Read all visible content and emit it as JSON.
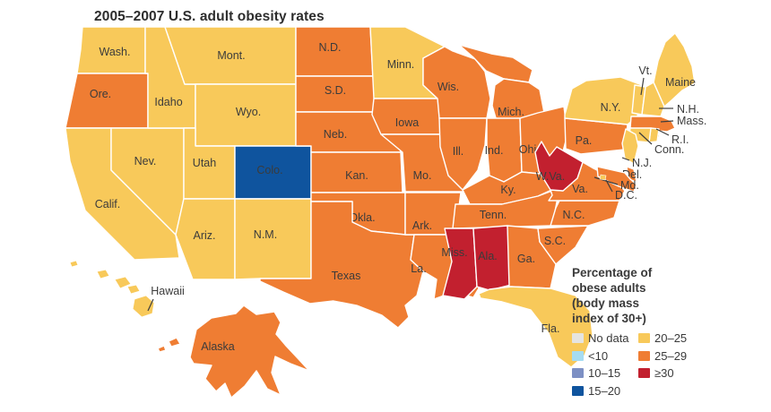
{
  "title": "2005–2007 U.S. adult obesity rates",
  "colors": {
    "no-data": "#E5E4E1",
    "lt10": "#A6DCF2",
    "b10-15": "#7D90C4",
    "b15-20": "#0F549E",
    "b20-25": "#F8C95A",
    "b25-29": "#EF7D33",
    "b30": "#C2202F"
  },
  "map": {
    "border_color": "#ffffff",
    "label_color": "#3b3b3b",
    "label_color_light": "#ffffff",
    "leader_color": "#3d3d3d"
  },
  "legend": {
    "title_lines": [
      "Percentage of",
      "obese adults",
      "(body mass",
      "index of 30+)"
    ],
    "columns": [
      [
        {
          "label": "No data",
          "category": "no-data"
        },
        {
          "label": "<10",
          "category": "lt10"
        },
        {
          "label": "10–15",
          "category": "b10-15"
        },
        {
          "label": "15–20",
          "category": "b15-20"
        }
      ],
      [
        {
          "label": "20–25",
          "category": "b20-25"
        },
        {
          "label": "25–29",
          "category": "b25-29"
        },
        {
          "label": "≥30",
          "category": "b30"
        }
      ]
    ]
  },
  "states": [
    {
      "id": "WA",
      "label": "Wash.",
      "category": "b20-25"
    },
    {
      "id": "OR",
      "label": "Ore.",
      "category": "b25-29"
    },
    {
      "id": "CA",
      "label": "Calif.",
      "category": "b20-25"
    },
    {
      "id": "NV",
      "label": "Nev.",
      "category": "b20-25"
    },
    {
      "id": "ID",
      "label": "Idaho",
      "category": "b20-25"
    },
    {
      "id": "MT",
      "label": "Mont.",
      "category": "b20-25"
    },
    {
      "id": "WY",
      "label": "Wyo.",
      "category": "b20-25"
    },
    {
      "id": "UT",
      "label": "Utah",
      "category": "b20-25"
    },
    {
      "id": "CO",
      "label": "Colo.",
      "category": "b15-20",
      "label_white": true
    },
    {
      "id": "AZ",
      "label": "Ariz.",
      "category": "b20-25"
    },
    {
      "id": "NM",
      "label": "N.M.",
      "category": "b20-25"
    },
    {
      "id": "ND",
      "label": "N.D.",
      "category": "b25-29"
    },
    {
      "id": "SD",
      "label": "S.D.",
      "category": "b25-29"
    },
    {
      "id": "NE",
      "label": "Neb.",
      "category": "b25-29"
    },
    {
      "id": "KS",
      "label": "Kan.",
      "category": "b25-29"
    },
    {
      "id": "OK",
      "label": "Okla.",
      "category": "b25-29"
    },
    {
      "id": "TX",
      "label": "Texas",
      "category": "b25-29"
    },
    {
      "id": "MN",
      "label": "Minn.",
      "category": "b20-25"
    },
    {
      "id": "IA",
      "label": "Iowa",
      "category": "b25-29"
    },
    {
      "id": "MO",
      "label": "Mo.",
      "category": "b25-29"
    },
    {
      "id": "AR",
      "label": "Ark.",
      "category": "b25-29"
    },
    {
      "id": "LA",
      "label": "La.",
      "category": "b25-29"
    },
    {
      "id": "WI",
      "label": "Wis.",
      "category": "b25-29"
    },
    {
      "id": "IL",
      "label": "Ill.",
      "category": "b25-29"
    },
    {
      "id": "MI",
      "label": "Mich.",
      "category": "b25-29"
    },
    {
      "id": "IN",
      "label": "Ind.",
      "category": "b25-29"
    },
    {
      "id": "OH",
      "label": "Ohio",
      "category": "b25-29"
    },
    {
      "id": "KY",
      "label": "Ky.",
      "category": "b25-29"
    },
    {
      "id": "TN",
      "label": "Tenn.",
      "category": "b25-29"
    },
    {
      "id": "MS",
      "label": "Miss.",
      "category": "b30",
      "label_white": true
    },
    {
      "id": "AL",
      "label": "Ala.",
      "category": "b30",
      "label_white": true
    },
    {
      "id": "GA",
      "label": "Ga.",
      "category": "b25-29"
    },
    {
      "id": "FL",
      "label": "Fla.",
      "category": "b20-25"
    },
    {
      "id": "SC",
      "label": "S.C.",
      "category": "b25-29"
    },
    {
      "id": "NC",
      "label": "N.C.",
      "category": "b25-29"
    },
    {
      "id": "VA",
      "label": "Va.",
      "category": "b25-29"
    },
    {
      "id": "WV",
      "label": "W.Va.",
      "category": "b30",
      "label_white": true
    },
    {
      "id": "PA",
      "label": "Pa.",
      "category": "b25-29"
    },
    {
      "id": "NY",
      "label": "N.Y.",
      "category": "b20-25"
    },
    {
      "id": "VT",
      "label": "Vt.",
      "category": "b20-25"
    },
    {
      "id": "ME",
      "label": "Maine",
      "category": "b20-25"
    },
    {
      "id": "NH",
      "label": "N.H.",
      "category": "b20-25"
    },
    {
      "id": "MA",
      "label": "Mass.",
      "category": "b25-29"
    },
    {
      "id": "RI",
      "label": "R.I.",
      "category": "b20-25"
    },
    {
      "id": "CT",
      "label": "Conn.",
      "category": "b20-25"
    },
    {
      "id": "NJ",
      "label": "N.J.",
      "category": "b20-25"
    },
    {
      "id": "DE",
      "label": "Del.",
      "category": "b25-29"
    },
    {
      "id": "MD",
      "label": "Md.",
      "category": "b25-29"
    },
    {
      "id": "DC",
      "label": "D.C.",
      "category": "b20-25"
    },
    {
      "id": "HI",
      "label": "Hawaii",
      "category": "b20-25"
    },
    {
      "id": "AK",
      "label": "Alaska",
      "category": "b25-29"
    }
  ],
  "chart_data": {
    "type": "choropleth",
    "title": "2005–2007 U.S. adult obesity rates",
    "unit": "Percentage of obese adults (body mass index of 30+)",
    "buckets": [
      "No data",
      "<10",
      "10–15",
      "15–20",
      "20–25",
      "25–29",
      "≥30"
    ],
    "states_by_bucket": {
      "15–20": [
        "Colorado"
      ],
      "20–25": [
        "Washington",
        "Montana",
        "Idaho",
        "Wyoming",
        "Nevada",
        "Utah",
        "California",
        "Arizona",
        "New Mexico",
        "Minnesota",
        "New York",
        "Vermont",
        "Maine",
        "New Hampshire",
        "Connecticut",
        "Rhode Island",
        "New Jersey",
        "District of Columbia",
        "Florida",
        "Hawaii"
      ],
      "25–29": [
        "Oregon",
        "North Dakota",
        "South Dakota",
        "Nebraska",
        "Kansas",
        "Oklahoma",
        "Texas",
        "Iowa",
        "Missouri",
        "Arkansas",
        "Louisiana",
        "Wisconsin",
        "Illinois",
        "Michigan",
        "Indiana",
        "Ohio",
        "Kentucky",
        "Tennessee",
        "Georgia",
        "South Carolina",
        "North Carolina",
        "Virginia",
        "Pennsylvania",
        "Delaware",
        "Maryland",
        "Massachusetts",
        "Alaska"
      ],
      "≥30": [
        "West Virginia",
        "Mississippi",
        "Alabama"
      ]
    }
  }
}
